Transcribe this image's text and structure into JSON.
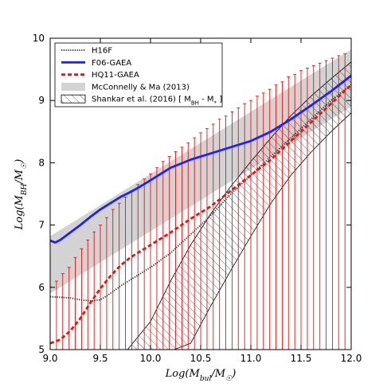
{
  "chart_data": {
    "type": "line",
    "xlabel": "Log(M_bul/M_☉)",
    "ylabel": "Log(M_BH/M_☉)",
    "xlim": [
      9.0,
      12.0
    ],
    "ylim": [
      5.0,
      10.0
    ],
    "xticks": [
      "9.0",
      "9.5",
      "10.0",
      "10.5",
      "11.0",
      "11.5",
      "12.0"
    ],
    "yticks": [
      "5",
      "6",
      "7",
      "8",
      "9",
      "10"
    ],
    "grid": false,
    "legend_position": "top-left",
    "colors": {
      "h16f": "#333333",
      "f06": "#1f1fff",
      "hq11": "#ee1111",
      "mcconnell": "#d3d3d3",
      "shankar": "#000000"
    },
    "series": [
      {
        "name": "H16F",
        "style": "dotted",
        "x": [
          9.0,
          9.1,
          9.2,
          9.3,
          9.4,
          9.5,
          9.6,
          9.7,
          9.8,
          9.9,
          10.0,
          10.2,
          10.4,
          10.6,
          10.8,
          11.0,
          11.2,
          11.4,
          11.6,
          11.8,
          12.0
        ],
        "y": [
          5.85,
          5.84,
          5.83,
          5.8,
          5.78,
          5.8,
          5.9,
          6.02,
          6.12,
          6.22,
          6.32,
          6.55,
          6.85,
          7.15,
          7.5,
          7.8,
          8.1,
          8.4,
          8.7,
          9.0,
          9.25
        ]
      },
      {
        "name": "F06-GAEA",
        "style": "solid",
        "x": [
          9.0,
          9.05,
          9.1,
          9.2,
          9.3,
          9.4,
          9.5,
          9.6,
          9.7,
          9.8,
          9.9,
          10.0,
          10.2,
          10.4,
          10.6,
          10.8,
          11.0,
          11.2,
          11.4,
          11.6,
          11.8,
          12.0
        ],
        "y": [
          6.75,
          6.72,
          6.76,
          6.88,
          7.0,
          7.13,
          7.25,
          7.35,
          7.45,
          7.53,
          7.62,
          7.72,
          7.92,
          8.05,
          8.15,
          8.25,
          8.35,
          8.5,
          8.7,
          8.92,
          9.15,
          9.4
        ]
      },
      {
        "name": "HQ11-GAEA",
        "style": "dashed",
        "x": [
          9.0,
          9.1,
          9.2,
          9.3,
          9.4,
          9.5,
          9.6,
          9.7,
          9.8,
          9.9,
          10.0,
          10.2,
          10.4,
          10.6,
          10.8,
          11.0,
          11.2,
          11.4,
          11.6,
          11.8,
          12.0
        ],
        "y": [
          5.1,
          5.16,
          5.3,
          5.5,
          5.75,
          5.98,
          6.18,
          6.35,
          6.48,
          6.58,
          6.68,
          6.88,
          7.1,
          7.3,
          7.55,
          7.8,
          8.05,
          8.35,
          8.65,
          8.95,
          9.25
        ],
        "errorbars": {
          "x": [
            9.0,
            9.063,
            9.125,
            9.188,
            9.25,
            9.313,
            9.375,
            9.438,
            9.5,
            9.563,
            9.625,
            9.688,
            9.75,
            9.813,
            9.875,
            9.938,
            10.0,
            10.063,
            10.125,
            10.188,
            10.25,
            10.313,
            10.375,
            10.438,
            10.5,
            10.563,
            10.625,
            10.688,
            10.75,
            10.813,
            10.875,
            10.938,
            11.0,
            11.063,
            11.125,
            11.188,
            11.25,
            11.313,
            11.375,
            11.438,
            11.5,
            11.563,
            11.625,
            11.688,
            11.75,
            11.813,
            11.875,
            11.938
          ],
          "upper": [
            6.0,
            6.1,
            6.22,
            6.32,
            6.48,
            6.62,
            6.76,
            6.89,
            7.0,
            7.12,
            7.25,
            7.35,
            7.45,
            7.55,
            7.65,
            7.74,
            7.82,
            7.92,
            8.02,
            8.1,
            8.18,
            8.25,
            8.32,
            8.4,
            8.48,
            8.55,
            8.62,
            8.7,
            8.75,
            8.82,
            8.88,
            8.95,
            9.0,
            9.07,
            9.12,
            9.18,
            9.25,
            9.3,
            9.38,
            9.42,
            9.48,
            9.52,
            9.56,
            9.6,
            9.64,
            9.68,
            9.72,
            9.75
          ],
          "lower": [
            5.0,
            5.0,
            5.0,
            5.0,
            5.0,
            5.0,
            5.0,
            5.0,
            5.0,
            5.0,
            5.0,
            5.0,
            5.0,
            5.0,
            5.0,
            5.0,
            5.0,
            5.0,
            5.0,
            5.0,
            5.0,
            5.0,
            5.0,
            5.0,
            5.0,
            5.0,
            5.0,
            5.0,
            5.0,
            5.0,
            5.0,
            5.0,
            5.0,
            5.0,
            5.0,
            5.0,
            5.0,
            5.0,
            5.0,
            5.0,
            5.0,
            5.0,
            5.0,
            5.0,
            5.0,
            5.0,
            5.0,
            5.0
          ]
        }
      }
    ],
    "bands": [
      {
        "name": "McConnelly & Ma (2013)",
        "fill": "solid",
        "x": [
          9.0,
          12.0
        ],
        "upper": [
          6.82,
          9.82
        ],
        "lower": [
          5.9,
          8.9
        ]
      },
      {
        "name": "Shankar et al. (2016) [ M_BH - M_* ]",
        "fill": "hatch",
        "x": [
          9.6,
          9.8,
          10.0,
          10.2,
          10.4,
          10.6,
          10.8,
          11.0,
          11.2,
          11.4,
          11.6,
          11.8,
          12.0
        ],
        "upper": [
          5.0,
          5.0,
          5.45,
          6.1,
          6.68,
          7.18,
          7.62,
          8.02,
          8.4,
          8.76,
          9.07,
          9.35,
          9.62
        ],
        "lower": [
          5.0,
          5.0,
          5.0,
          5.0,
          5.1,
          5.7,
          6.27,
          6.82,
          7.35,
          7.8,
          8.17,
          8.5,
          8.8
        ],
        "upper_start": [
          9.73,
          4.92
        ],
        "lower_start": [
          10.2,
          4.98
        ]
      }
    ],
    "legend": [
      {
        "label": "H16F",
        "kind": "dotted"
      },
      {
        "label": "F06-GAEA",
        "kind": "solid"
      },
      {
        "label": "HQ11-GAEA",
        "kind": "dashed"
      },
      {
        "label": "McConnelly & Ma (2013)",
        "kind": "band"
      },
      {
        "label": "Shankar et al. (2016) [ M_BH - M_* ]",
        "kind": "hatch"
      }
    ]
  }
}
